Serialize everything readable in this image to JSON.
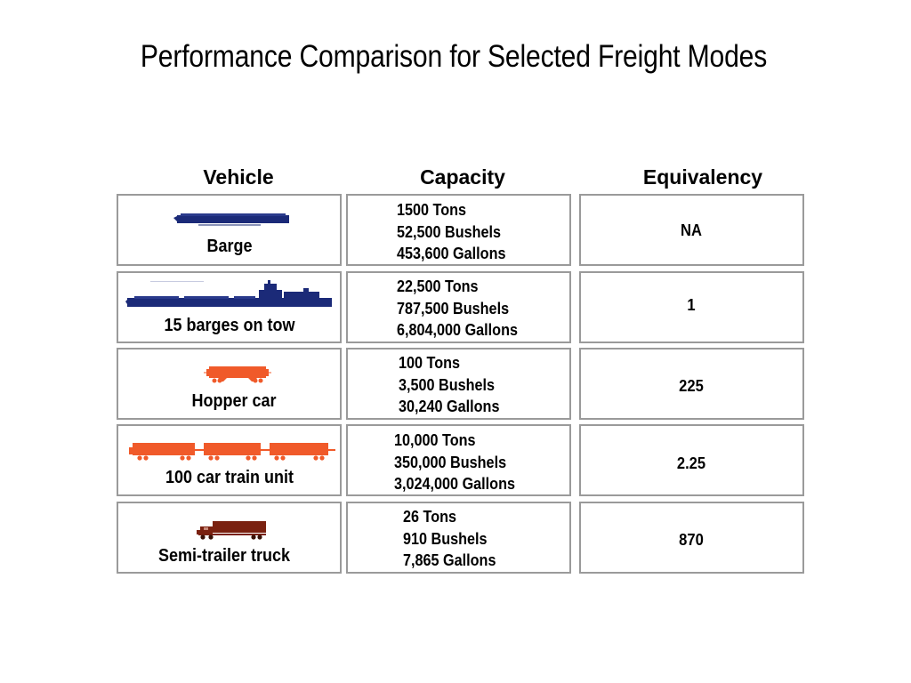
{
  "title": "Performance Comparison for Selected Freight Modes",
  "headers": {
    "vehicle": "Vehicle",
    "capacity": "Capacity",
    "equivalency": "Equivalency"
  },
  "colors": {
    "barge": "#1b2a78",
    "rail": "#f05a2a",
    "truck": "#7a2110",
    "border": "#9a9a9a"
  },
  "rows": [
    {
      "vehicle": "Barge",
      "icon": "barge-icon",
      "capacity": [
        "1500 Tons",
        "52,500 Bushels",
        "453,600 Gallons"
      ],
      "equivalency": "NA"
    },
    {
      "vehicle": "15 barges on tow",
      "icon": "barge-tow-icon",
      "capacity": [
        "22,500 Tons",
        "787,500 Bushels",
        "6,804,000 Gallons"
      ],
      "equivalency": "1"
    },
    {
      "vehicle": "Hopper car",
      "icon": "hopper-car-icon",
      "capacity": [
        "100 Tons",
        "3,500 Bushels",
        "30,240 Gallons"
      ],
      "equivalency": "225"
    },
    {
      "vehicle": "100 car train unit",
      "icon": "train-unit-icon",
      "capacity": [
        "10,000 Tons",
        "350,000 Bushels",
        "3,024,000 Gallons"
      ],
      "equivalency": "2.25"
    },
    {
      "vehicle": "Semi-trailer truck",
      "icon": "semi-truck-icon",
      "capacity": [
        "26 Tons",
        "910 Bushels",
        "7,865 Gallons"
      ],
      "equivalency": "870"
    }
  ]
}
